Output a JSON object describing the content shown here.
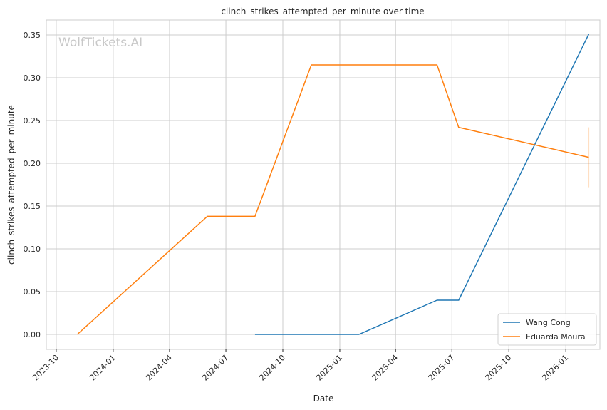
{
  "chart_data": {
    "type": "line",
    "title": "clinch_strikes_attempted_per_minute over time",
    "xlabel": "Date",
    "ylabel": "clinch_strikes_attempted_per_minute",
    "watermark": "WolfTickets.AI",
    "x_ticks": [
      "2023-10",
      "2024-01",
      "2024-04",
      "2024-07",
      "2024-10",
      "2025-01",
      "2025-04",
      "2025-07",
      "2025-10",
      "2026-01"
    ],
    "y_ticks": [
      "0.00",
      "0.05",
      "0.10",
      "0.15",
      "0.20",
      "0.25",
      "0.30",
      "0.35"
    ],
    "xlim": [
      "2023-09-15",
      "2026-02-25"
    ],
    "ylim": [
      -0.0175,
      0.3675
    ],
    "grid": true,
    "legend_position": "lower-right",
    "series": [
      {
        "name": "Wang Cong",
        "color": "#1f77b4",
        "points": [
          {
            "x": "2024-08-17",
            "y": 0.0
          },
          {
            "x": "2025-02-01",
            "y": 0.0
          },
          {
            "x": "2025-06-07",
            "y": 0.04
          },
          {
            "x": "2025-07-12",
            "y": 0.04
          },
          {
            "x": "2026-02-07",
            "y": 0.351
          }
        ]
      },
      {
        "name": "Eduarda Moura",
        "color": "#ff7f0e",
        "points": [
          {
            "x": "2023-11-04",
            "y": 0.0
          },
          {
            "x": "2024-06-01",
            "y": 0.138
          },
          {
            "x": "2024-08-17",
            "y": 0.138
          },
          {
            "x": "2024-11-16",
            "y": 0.315
          },
          {
            "x": "2025-06-07",
            "y": 0.315
          },
          {
            "x": "2025-07-12",
            "y": 0.242
          },
          {
            "x": "2026-02-07",
            "y": 0.207
          }
        ],
        "error_band": {
          "x": "2026-02-07",
          "low": 0.172,
          "high": 0.242
        }
      }
    ]
  }
}
